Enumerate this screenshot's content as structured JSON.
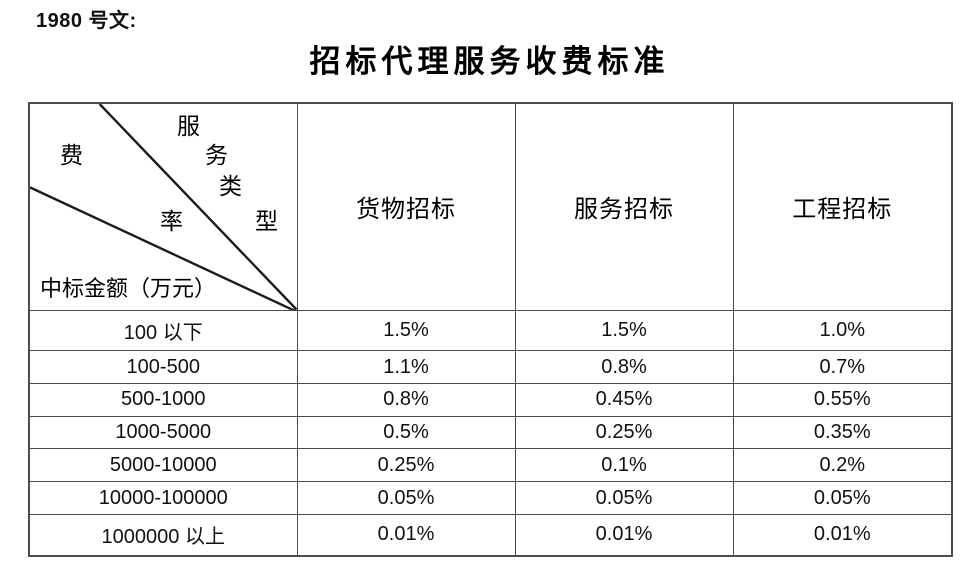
{
  "page": {
    "doc_ref": "1980 号文:",
    "title": "招标代理服务收费标准",
    "background_color": "#ffffff",
    "border_color": "#4d4d4d",
    "text_color": "#111111"
  },
  "table": {
    "corner": {
      "zone_top_right_label": "服务类型",
      "zone_top_right_chars": [
        "服",
        "务",
        "类",
        "型"
      ],
      "zone_middle_label": "费率",
      "zone_middle_chars": [
        "费",
        "率"
      ],
      "zone_bottom_label": "中标金额（万元）"
    },
    "column_headers": [
      "货物招标",
      "服务招标",
      "工程招标"
    ],
    "rows": [
      {
        "amount_range": "100 以下",
        "values": [
          "1.5%",
          "1.5%",
          "1.0%"
        ]
      },
      {
        "amount_range": "100-500",
        "values": [
          "1.1%",
          "0.8%",
          "0.7%"
        ]
      },
      {
        "amount_range": "500-1000",
        "values": [
          "0.8%",
          "0.45%",
          "0.55%"
        ]
      },
      {
        "amount_range": "1000-5000",
        "values": [
          "0.5%",
          "0.25%",
          "0.35%"
        ]
      },
      {
        "amount_range": "5000-10000",
        "values": [
          "0.25%",
          "0.1%",
          "0.2%"
        ]
      },
      {
        "amount_range": "10000-100000",
        "values": [
          "0.05%",
          "0.05%",
          "0.05%"
        ]
      },
      {
        "amount_range": "1000000 以上",
        "values": [
          "0.01%",
          "0.01%",
          "0.01%"
        ]
      }
    ]
  }
}
